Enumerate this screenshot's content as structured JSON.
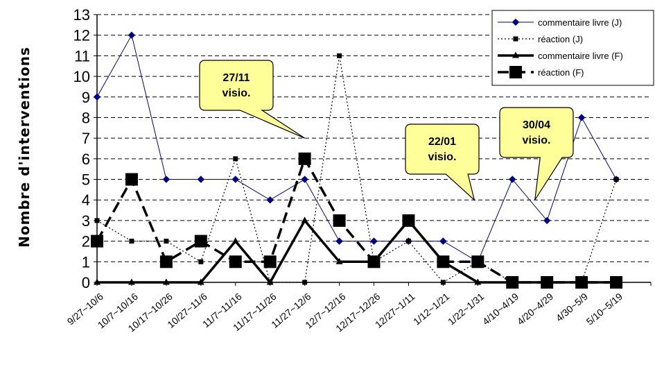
{
  "chart_data": {
    "type": "line",
    "title": "",
    "xlabel": "",
    "ylabel": "Nombre d'interventions",
    "ylim": [
      0,
      13
    ],
    "yticks": [
      0,
      1,
      2,
      3,
      4,
      5,
      6,
      7,
      8,
      9,
      10,
      11,
      12,
      13
    ],
    "grid": "horizontal dashed",
    "legend_position": "top-right",
    "categories": [
      "9/27~10/6",
      "10/7~10/16",
      "10/17~10/26",
      "10/27~11/6",
      "11/7~11/16",
      "11/17~11/26",
      "11/27~12/6",
      "12/7~12/16",
      "12/17~12/26",
      "12/27~1/11",
      "1/12~1/21",
      "1/22~1/31",
      "4/10~4/19",
      "4/20~4/29",
      "4/30~5/9",
      "5/10~5/19"
    ],
    "series": [
      {
        "name": "commentaire livre (J)",
        "color": "#000080",
        "marker": "diamond",
        "line": "thin-solid",
        "x": [
          0,
          1,
          2,
          3,
          4,
          5,
          6,
          7,
          8,
          9,
          10,
          11,
          12,
          13,
          14,
          15
        ],
        "values": [
          9,
          12,
          5,
          5,
          5,
          4,
          5,
          2,
          2,
          2,
          2,
          1,
          5,
          3,
          8,
          5
        ]
      },
      {
        "name": "réaction (J)",
        "color": "#000000",
        "marker": "small-square",
        "line": "dotted",
        "x": [
          0,
          1,
          2,
          3,
          4,
          5,
          6,
          7,
          8,
          9,
          10,
          11,
          12,
          13,
          14,
          15
        ],
        "values": [
          3,
          2,
          2,
          1,
          6,
          0,
          0,
          11,
          1,
          2,
          0,
          1,
          0,
          0,
          0,
          5
        ]
      },
      {
        "name": "commentaire livre (F)",
        "color": "#000000",
        "marker": "triangle",
        "line": "thick-solid",
        "x": [
          0,
          1,
          2,
          3,
          4,
          5,
          6,
          7,
          8,
          9,
          10,
          11,
          12,
          13,
          14,
          15
        ],
        "values": [
          0,
          0,
          0,
          0,
          2,
          0,
          3,
          1,
          1,
          3,
          1,
          0,
          0,
          0,
          0,
          0
        ]
      },
      {
        "name": "réaction (F)",
        "color": "#000000",
        "marker": "big-square",
        "line": "thick-dashed",
        "x": [
          0,
          1,
          2,
          3,
          4,
          5,
          6,
          7,
          8,
          9,
          10,
          11,
          12,
          13,
          14,
          15
        ],
        "values": [
          2,
          5,
          1,
          2,
          1,
          1,
          6,
          3,
          1,
          3,
          1,
          1,
          0,
          0,
          0,
          0
        ]
      }
    ],
    "annotations": [
      {
        "lines": [
          "27/11",
          "visio."
        ],
        "points_to": {
          "x": 6,
          "y": 7
        }
      },
      {
        "lines": [
          "22/01",
          "visio."
        ],
        "points_to": {
          "x": 10.9,
          "y": 4
        }
      },
      {
        "lines": [
          "30/04",
          "visio."
        ],
        "points_to": {
          "x": 12.65,
          "y": 4
        }
      }
    ]
  }
}
